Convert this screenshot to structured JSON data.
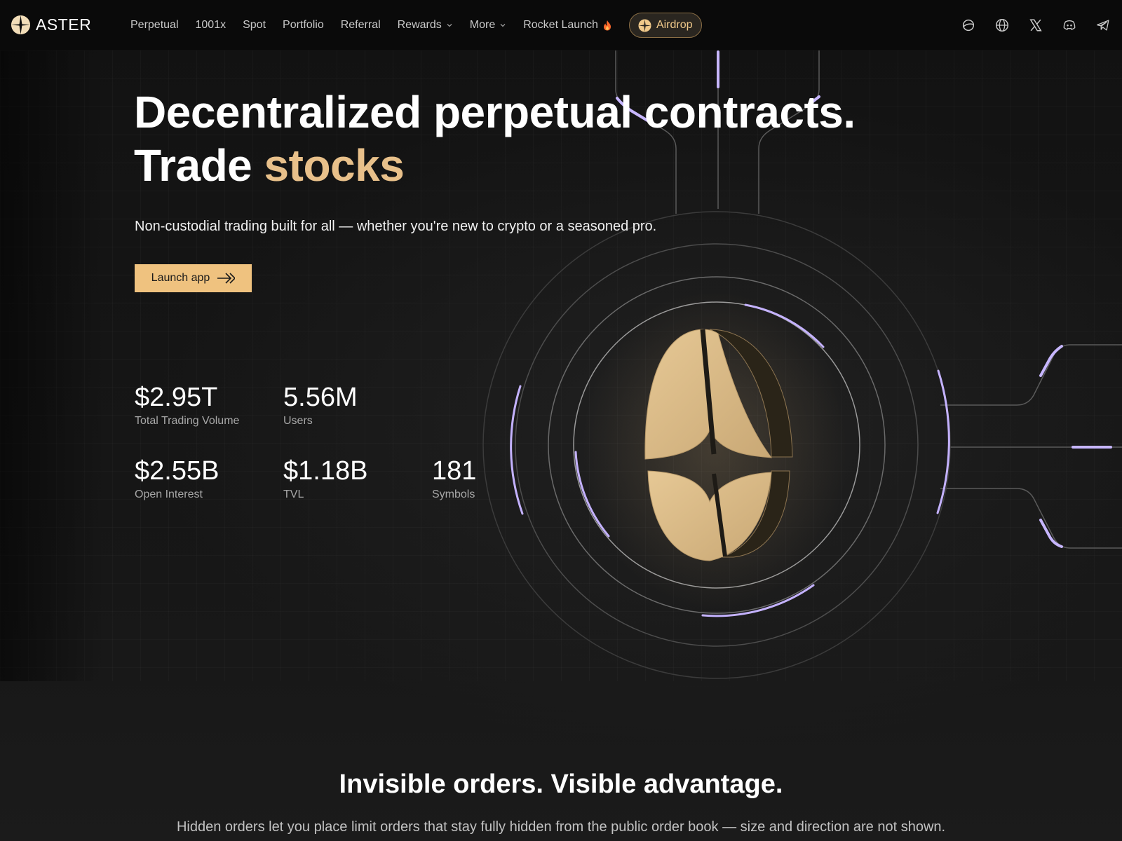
{
  "nav": {
    "brand": "ASTER",
    "links": [
      {
        "label": "Perpetual"
      },
      {
        "label": "1001x"
      },
      {
        "label": "Spot"
      },
      {
        "label": "Portfolio"
      },
      {
        "label": "Referral"
      },
      {
        "label": "Rewards",
        "dropdown": true
      },
      {
        "label": "More",
        "dropdown": true
      },
      {
        "label": "Rocket Launch",
        "icon": "fire-icon"
      }
    ],
    "airdrop_label": "Airdrop",
    "icons": [
      "planet-icon",
      "globe-icon",
      "x-icon",
      "discord-icon",
      "telegram-icon"
    ]
  },
  "hero": {
    "title_line1": "Decentralized perpetual contracts.",
    "title_line2_prefix": "Trade ",
    "title_line2_accent": "stocks",
    "subtitle": "Non-custodial trading built for all — whether you're new to crypto or a seasoned pro.",
    "cta_label": "Launch app"
  },
  "stats": [
    {
      "value": "$2.95T",
      "label": "Total Trading Volume"
    },
    {
      "value": "5.56M",
      "label": "Users"
    },
    {
      "value": "$2.55B",
      "label": "Open Interest"
    },
    {
      "value": "$1.18B",
      "label": "TVL"
    },
    {
      "value": "181",
      "label": "Symbols"
    }
  ],
  "section2": {
    "title": "Invisible orders. Visible advantage.",
    "subtitle": "Hidden orders let you place limit orders that stay fully hidden from the public order book — size and direction are not shown."
  },
  "colors": {
    "accent": "#efc27f",
    "accent_text": "#e8c08a",
    "glow": "#b8a6f0",
    "background": "#141414"
  }
}
